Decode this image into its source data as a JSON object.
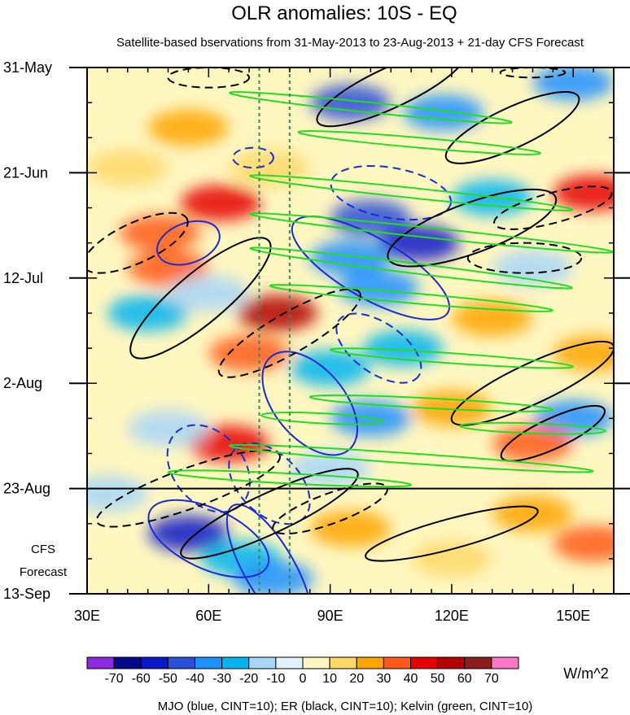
{
  "chart_data": {
    "type": "heatmap",
    "title": "OLR anomalies: 10S - EQ",
    "subtitle": "Satellite-based bservations from 31-May-2013 to 23-Aug-2013 + 21-day CFS Forecast",
    "x_range": [
      30,
      160
    ],
    "x_ticks": [
      {
        "value": 30,
        "label": "30E"
      },
      {
        "value": 60,
        "label": "60E"
      },
      {
        "value": 90,
        "label": "90E"
      },
      {
        "value": 120,
        "label": "120E"
      },
      {
        "value": 150,
        "label": "150E"
      }
    ],
    "y_range_days": [
      0,
      105
    ],
    "y_ticks": [
      {
        "day": 0,
        "label": "31-May"
      },
      {
        "day": 21,
        "label": "21-Jun"
      },
      {
        "day": 42,
        "label": "12-Jul"
      },
      {
        "day": 63,
        "label": "2-Aug"
      },
      {
        "day": 84,
        "label": "23-Aug"
      },
      {
        "day": 105,
        "label": "13-Sep"
      }
    ],
    "observation_end_day": 84,
    "forecast_label_1": "CFS",
    "forecast_label_2": "Forecast",
    "reference_longitudes": [
      72.5,
      80
    ],
    "colorbar": {
      "labels": [
        "-70",
        "-60",
        "-50",
        "-40",
        "-30",
        "-20",
        "-10",
        "0",
        "10",
        "20",
        "30",
        "40",
        "50",
        "60",
        "70"
      ],
      "colors": [
        "#8a2be2",
        "#08088a",
        "#0a19c8",
        "#2a4fd8",
        "#1e90ff",
        "#00b4f0",
        "#a8d6f8",
        "#dff4ff",
        "#fff7c0",
        "#ffd86a",
        "#ffa500",
        "#ff5a1a",
        "#e60000",
        "#b30000",
        "#8c1e1e",
        "#ff77c8"
      ],
      "units": "W/m^2"
    },
    "contour_legend": "MJO (blue, CINT=10); ER (black, CINT=10); Kelvin (green, CINT=10)",
    "anomaly_blobs": [
      {
        "lon": 95,
        "day": 7,
        "value": -50
      },
      {
        "lon": 118,
        "day": 9,
        "value": -40
      },
      {
        "lon": 150,
        "day": 3,
        "value": -40
      },
      {
        "lon": 55,
        "day": 12,
        "value": 20
      },
      {
        "lon": 40,
        "day": 20,
        "value": 10
      },
      {
        "lon": 75,
        "day": 20,
        "value": 10
      },
      {
        "lon": 63,
        "day": 27,
        "value": 40
      },
      {
        "lon": 48,
        "day": 33,
        "value": 30
      },
      {
        "lon": 50,
        "day": 40,
        "value": 30
      },
      {
        "lon": 100,
        "day": 30,
        "value": -50
      },
      {
        "lon": 112,
        "day": 35,
        "value": -60
      },
      {
        "lon": 95,
        "day": 38,
        "value": -40
      },
      {
        "lon": 102,
        "day": 44,
        "value": -40
      },
      {
        "lon": 130,
        "day": 26,
        "value": -30
      },
      {
        "lon": 140,
        "day": 40,
        "value": -20
      },
      {
        "lon": 155,
        "day": 25,
        "value": 40
      },
      {
        "lon": 45,
        "day": 49,
        "value": -30
      },
      {
        "lon": 60,
        "day": 45,
        "value": -20
      },
      {
        "lon": 77,
        "day": 49,
        "value": 50
      },
      {
        "lon": 70,
        "day": 57,
        "value": 30
      },
      {
        "lon": 108,
        "day": 56,
        "value": -30
      },
      {
        "lon": 90,
        "day": 60,
        "value": -30
      },
      {
        "lon": 130,
        "day": 50,
        "value": 20
      },
      {
        "lon": 155,
        "day": 57,
        "value": 20
      },
      {
        "lon": 100,
        "day": 70,
        "value": -40
      },
      {
        "lon": 120,
        "day": 68,
        "value": 20
      },
      {
        "lon": 65,
        "day": 75,
        "value": 40
      },
      {
        "lon": 50,
        "day": 72,
        "value": -20
      },
      {
        "lon": 150,
        "day": 70,
        "value": -40
      },
      {
        "lon": 140,
        "day": 75,
        "value": 30
      },
      {
        "lon": 90,
        "day": 80,
        "value": -20
      },
      {
        "lon": 55,
        "day": 93,
        "value": -60
      },
      {
        "lon": 68,
        "day": 98,
        "value": -30
      },
      {
        "lon": 76,
        "day": 102,
        "value": -40
      },
      {
        "lon": 95,
        "day": 92,
        "value": 20
      },
      {
        "lon": 140,
        "day": 89,
        "value": 20
      },
      {
        "lon": 155,
        "day": 95,
        "value": 30
      },
      {
        "lon": 120,
        "day": 98,
        "value": 10
      },
      {
        "lon": 35,
        "day": 85,
        "value": -20
      }
    ],
    "mjo_contours": [
      {
        "lon": 55,
        "day": 35,
        "dlon": 8,
        "dday": 4,
        "angle": -20,
        "dashed": false
      },
      {
        "lon": 100,
        "day": 40,
        "dlon": 22,
        "dday": 6,
        "angle": 30,
        "dashed": false
      },
      {
        "lon": 85,
        "day": 67,
        "dlon": 15,
        "dday": 7,
        "angle": 50,
        "dashed": false
      },
      {
        "lon": 60,
        "day": 94,
        "dlon": 16,
        "dday": 6,
        "angle": 25,
        "dashed": false
      },
      {
        "lon": 75,
        "day": 100,
        "dlon": 18,
        "dday": 5,
        "angle": 60,
        "dashed": false
      },
      {
        "lon": 102,
        "day": 56,
        "dlon": 12,
        "dday": 5,
        "angle": 35,
        "dashed": true
      },
      {
        "lon": 105,
        "day": 25,
        "dlon": 15,
        "dday": 5,
        "angle": 10,
        "dashed": true
      },
      {
        "lon": 60,
        "day": 80,
        "dlon": 12,
        "dday": 7,
        "angle": 50,
        "dashed": true
      },
      {
        "lon": 75,
        "day": 83,
        "dlon": 12,
        "dday": 6,
        "angle": 45,
        "dashed": true
      },
      {
        "lon": 71,
        "day": 18,
        "dlon": 5,
        "dday": 2,
        "angle": 0,
        "dashed": true
      }
    ],
    "er_contours": [
      {
        "lon": 58,
        "day": 46,
        "dlon": 22,
        "dday": 5,
        "angle": -40,
        "dashed": false
      },
      {
        "lon": 105,
        "day": 4,
        "dlon": 20,
        "dday": 4,
        "angle": -25,
        "dashed": false
      },
      {
        "lon": 135,
        "day": 12,
        "dlon": 18,
        "dday": 4,
        "angle": -25,
        "dashed": false
      },
      {
        "lon": 125,
        "day": 32,
        "dlon": 22,
        "dday": 5,
        "angle": -20,
        "dashed": false
      },
      {
        "lon": 140,
        "day": 63,
        "dlon": 22,
        "dday": 4,
        "angle": -25,
        "dashed": false
      },
      {
        "lon": 145,
        "day": 73,
        "dlon": 14,
        "dday": 3,
        "angle": -25,
        "dashed": false
      },
      {
        "lon": 75,
        "day": 89,
        "dlon": 24,
        "dday": 4,
        "angle": -25,
        "dashed": false
      },
      {
        "lon": 120,
        "day": 93,
        "dlon": 22,
        "dday": 3,
        "angle": -15,
        "dashed": false
      },
      {
        "lon": 42,
        "day": 35,
        "dlon": 14,
        "dday": 4,
        "angle": -25,
        "dashed": true
      },
      {
        "lon": 80,
        "day": 53,
        "dlon": 20,
        "dday": 4,
        "angle": -30,
        "dashed": true
      },
      {
        "lon": 55,
        "day": 84,
        "dlon": 24,
        "dday": 4,
        "angle": -20,
        "dashed": true
      },
      {
        "lon": 90,
        "day": 88,
        "dlon": 15,
        "dday": 3,
        "angle": -20,
        "dashed": true
      },
      {
        "lon": 138,
        "day": 38,
        "dlon": 14,
        "dday": 3,
        "angle": 0,
        "dashed": true
      },
      {
        "lon": 145,
        "day": 28,
        "dlon": 15,
        "dday": 3,
        "angle": -15,
        "dashed": true
      },
      {
        "lon": 60,
        "day": 2,
        "dlon": 10,
        "dday": 2,
        "angle": 0,
        "dashed": true
      },
      {
        "lon": 140,
        "day": 1,
        "dlon": 8,
        "dday": 1,
        "angle": 0,
        "dashed": true
      }
    ],
    "kelvin_contours": [
      {
        "lon": 100,
        "day": 8,
        "dlon": 35,
        "dday": 1,
        "angle": 6
      },
      {
        "lon": 112,
        "day": 15,
        "dlon": 30,
        "dday": 1,
        "angle": 5
      },
      {
        "lon": 110,
        "day": 25,
        "dlon": 40,
        "dday": 1,
        "angle": 6
      },
      {
        "lon": 115,
        "day": 33,
        "dlon": 45,
        "dday": 1,
        "angle": 6
      },
      {
        "lon": 110,
        "day": 40,
        "dlon": 40,
        "dday": 1,
        "angle": 7
      },
      {
        "lon": 110,
        "day": 46,
        "dlon": 35,
        "dday": 1,
        "angle": 5
      },
      {
        "lon": 120,
        "day": 58,
        "dlon": 30,
        "dday": 1,
        "angle": 4
      },
      {
        "lon": 115,
        "day": 67,
        "dlon": 30,
        "dday": 1,
        "angle": 3
      },
      {
        "lon": 110,
        "day": 78,
        "dlon": 45,
        "dday": 1,
        "angle": 4
      },
      {
        "lon": 80,
        "day": 82,
        "dlon": 30,
        "dday": 1,
        "angle": 3
      },
      {
        "lon": 140,
        "day": 72,
        "dlon": 18,
        "dday": 1,
        "angle": 2
      },
      {
        "lon": 88,
        "day": 70,
        "dlon": 15,
        "dday": 1,
        "angle": 3
      }
    ]
  }
}
